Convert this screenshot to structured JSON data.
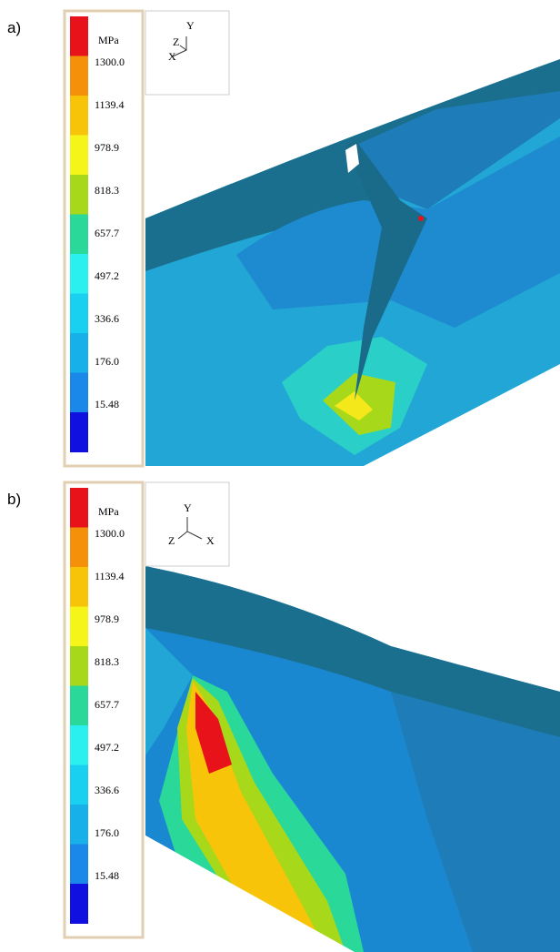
{
  "panels": [
    {
      "label": "a)",
      "legend": {
        "unit": "MPa",
        "values": [
          "1300.0",
          "1139.4",
          "978.9",
          "818.3",
          "657.7",
          "497.2",
          "336.6",
          "176.0",
          "15.48"
        ],
        "colors": [
          "#e8121a",
          "#f5900a",
          "#f7c40a",
          "#f5f51a",
          "#a8d81a",
          "#2ad89a",
          "#2af0f0",
          "#1ad0f0",
          "#18b0e8",
          "#1a88e8",
          "#1010e0"
        ]
      },
      "axes": {
        "x": "X",
        "y": "Y",
        "z": "Z"
      }
    },
    {
      "label": "b)",
      "legend": {
        "unit": "MPa",
        "values": [
          "1300.0",
          "1139.4",
          "978.9",
          "818.3",
          "657.7",
          "497.2",
          "336.6",
          "176.0",
          "15.48"
        ],
        "colors": [
          "#e8121a",
          "#f5900a",
          "#f7c40a",
          "#f5f51a",
          "#a8d81a",
          "#2ad89a",
          "#2af0f0",
          "#1ad0f0",
          "#18b0e8",
          "#1a88e8",
          "#1010e0"
        ]
      },
      "axes": {
        "x": "X",
        "y": "Y",
        "z": "Z"
      }
    }
  ]
}
